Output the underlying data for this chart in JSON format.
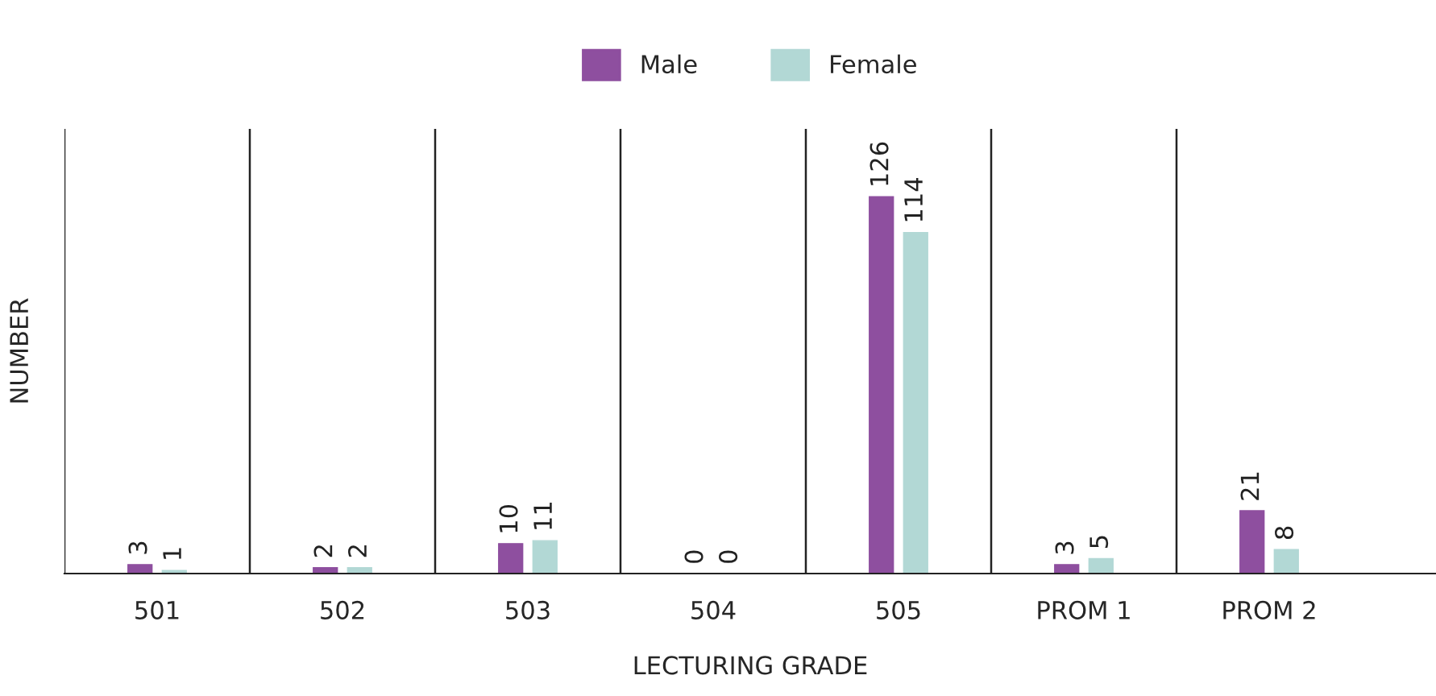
{
  "chart_data": {
    "type": "bar",
    "xlabel": "LECTURING GRADE",
    "ylabel": "NUMBER",
    "categories": [
      "501",
      "502",
      "503",
      "504",
      "505",
      "PROM 1",
      "PROM 2"
    ],
    "series": [
      {
        "name": "Male",
        "color": "#8e4f9f",
        "values": [
          3,
          2,
          10,
          0,
          126,
          3,
          21
        ]
      },
      {
        "name": "Female",
        "color": "#b2d8d5",
        "values": [
          1,
          2,
          11,
          0,
          114,
          5,
          8
        ]
      }
    ],
    "data_labels": true,
    "legend": "top",
    "grid": "x"
  }
}
